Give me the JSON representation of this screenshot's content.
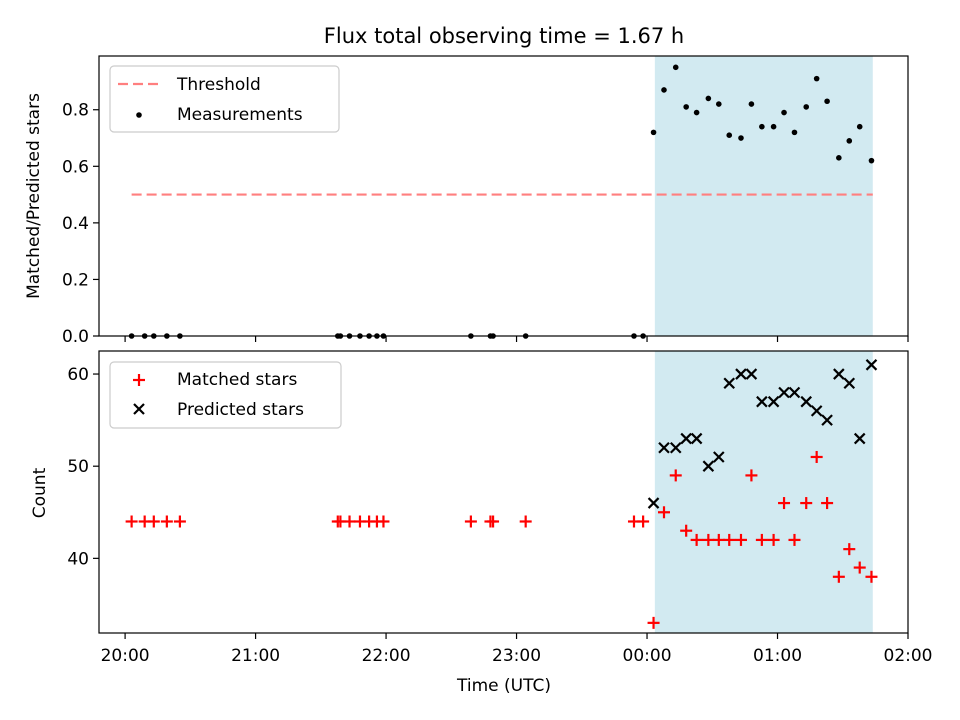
{
  "chart_data": [
    {
      "type": "scatter",
      "title": "Flux total observing time = 1.67 h",
      "xlabel": "",
      "ylabel": "Matched/Predicted stars",
      "ylim": [
        0,
        0.99
      ],
      "yticks": [
        0.0,
        0.2,
        0.4,
        0.6,
        0.8
      ],
      "ytick_labels": [
        "0.0",
        "0.2",
        "0.4",
        "0.6",
        "0.8"
      ],
      "xlim_hours": [
        19.8,
        26.0
      ],
      "shaded_region_hours": [
        24.06,
        25.73
      ],
      "shaded_color": "#add8e6",
      "legend_position": "top-left",
      "threshold": {
        "name": "Threshold",
        "y": 0.5,
        "x_range_hours": [
          20.05,
          25.73
        ],
        "color": "#ff7f7f"
      },
      "series": [
        {
          "name": "Measurements",
          "color": "#000000",
          "x_hours": [
            20.05,
            20.15,
            20.22,
            20.32,
            20.42,
            21.63,
            21.65,
            21.72,
            21.8,
            21.87,
            21.93,
            21.98,
            22.65,
            22.8,
            22.82,
            23.07,
            23.9,
            23.97,
            24.05,
            24.13,
            24.22,
            24.3,
            24.38,
            24.47,
            24.55,
            24.63,
            24.72,
            24.8,
            24.88,
            24.97,
            25.05,
            25.13,
            25.22,
            25.3,
            25.38,
            25.47,
            25.55,
            25.63,
            25.72
          ],
          "y": [
            0,
            0,
            0,
            0,
            0,
            0,
            0,
            0,
            0,
            0,
            0,
            0,
            0,
            0,
            0,
            0,
            0,
            0,
            0.72,
            0.87,
            0.95,
            0.81,
            0.79,
            0.84,
            0.82,
            0.71,
            0.7,
            0.82,
            0.74,
            0.74,
            0.79,
            0.72,
            0.81,
            0.91,
            0.83,
            0.63,
            0.69,
            0.74,
            0.62
          ]
        }
      ]
    },
    {
      "type": "scatter",
      "title": "",
      "xlabel": "Time (UTC)",
      "ylabel": "Count",
      "ylim": [
        31.9,
        62.5
      ],
      "yticks": [
        40,
        50,
        60
      ],
      "ytick_labels": [
        "40",
        "50",
        "60"
      ],
      "xticks_hours": [
        20,
        21,
        22,
        23,
        24,
        25,
        26
      ],
      "xtick_labels": [
        "20:00",
        "21:00",
        "22:00",
        "23:00",
        "00:00",
        "01:00",
        "02:00"
      ],
      "xlim_hours": [
        19.8,
        26.0
      ],
      "shaded_region_hours": [
        24.06,
        25.73
      ],
      "shaded_color": "#add8e6",
      "legend_position": "top-left",
      "series": [
        {
          "name": "Matched stars",
          "marker": "+",
          "color": "#ff0000",
          "x_hours": [
            20.05,
            20.15,
            20.22,
            20.32,
            20.42,
            21.63,
            21.65,
            21.72,
            21.8,
            21.87,
            21.93,
            21.98,
            22.65,
            22.8,
            22.82,
            23.07,
            23.9,
            23.97,
            24.05,
            24.13,
            24.22,
            24.3,
            24.38,
            24.47,
            24.55,
            24.63,
            24.72,
            24.8,
            24.88,
            24.97,
            25.05,
            25.13,
            25.22,
            25.3,
            25.38,
            25.47,
            25.55,
            25.63,
            25.72
          ],
          "y": [
            44,
            44,
            44,
            44,
            44,
            44,
            44,
            44,
            44,
            44,
            44,
            44,
            44,
            44,
            44,
            44,
            44,
            44,
            33,
            45,
            49,
            43,
            42,
            42,
            42,
            42,
            42,
            49,
            42,
            42,
            46,
            42,
            46,
            51,
            46,
            38,
            41,
            39,
            38
          ]
        },
        {
          "name": "Predicted stars",
          "marker": "x",
          "color": "#000000",
          "x_hours": [
            24.05,
            24.13,
            24.22,
            24.3,
            24.38,
            24.47,
            24.55,
            24.63,
            24.72,
            24.8,
            24.88,
            24.97,
            25.05,
            25.13,
            25.22,
            25.3,
            25.38,
            25.47,
            25.55,
            25.63,
            25.72
          ],
          "y": [
            46,
            52,
            52,
            53,
            53,
            50,
            51,
            59,
            60,
            60,
            57,
            57,
            58,
            58,
            57,
            56,
            55,
            60,
            59,
            53,
            61
          ]
        }
      ]
    }
  ]
}
